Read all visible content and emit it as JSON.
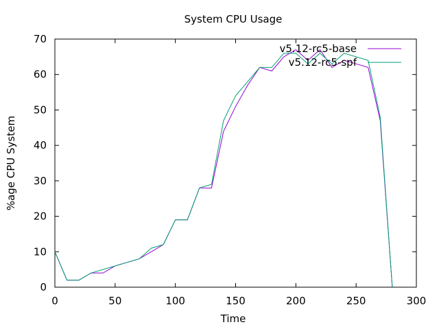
{
  "chart_data": {
    "type": "line",
    "title": "System CPU Usage",
    "xlabel": "Time",
    "ylabel": "%age CPU System",
    "xlim": [
      0,
      300
    ],
    "ylim": [
      0,
      70
    ],
    "xticks": [
      0,
      50,
      100,
      150,
      200,
      250,
      300
    ],
    "yticks": [
      0,
      10,
      20,
      30,
      40,
      50,
      60,
      70
    ],
    "grid": false,
    "legend_position": "top-right",
    "series": [
      {
        "name": "v5.12-rc5-base",
        "color": "#9400d3",
        "points": [
          [
            0,
            10
          ],
          [
            10,
            2
          ],
          [
            20,
            2
          ],
          [
            30,
            4
          ],
          [
            40,
            4
          ],
          [
            50,
            6
          ],
          [
            60,
            7
          ],
          [
            70,
            8
          ],
          [
            80,
            10
          ],
          [
            90,
            12
          ],
          [
            100,
            19
          ],
          [
            110,
            19
          ],
          [
            120,
            28
          ],
          [
            130,
            28
          ],
          [
            140,
            44
          ],
          [
            150,
            51
          ],
          [
            160,
            57
          ],
          [
            170,
            62
          ],
          [
            180,
            61
          ],
          [
            190,
            65
          ],
          [
            200,
            67
          ],
          [
            210,
            64
          ],
          [
            220,
            67
          ],
          [
            230,
            62
          ],
          [
            240,
            64
          ],
          [
            250,
            63
          ],
          [
            260,
            62
          ],
          [
            270,
            47
          ],
          [
            280,
            0
          ]
        ]
      },
      {
        "name": "v5.12-rc5-spf",
        "color": "#009e73",
        "points": [
          [
            0,
            10
          ],
          [
            10,
            2
          ],
          [
            20,
            2
          ],
          [
            30,
            4
          ],
          [
            40,
            5
          ],
          [
            50,
            6
          ],
          [
            60,
            7
          ],
          [
            70,
            8
          ],
          [
            80,
            11
          ],
          [
            90,
            12
          ],
          [
            100,
            19
          ],
          [
            110,
            19
          ],
          [
            120,
            28
          ],
          [
            130,
            29
          ],
          [
            140,
            47
          ],
          [
            150,
            54
          ],
          [
            160,
            58
          ],
          [
            170,
            62
          ],
          [
            180,
            62
          ],
          [
            190,
            66
          ],
          [
            200,
            66
          ],
          [
            210,
            63
          ],
          [
            220,
            66
          ],
          [
            230,
            63
          ],
          [
            240,
            66
          ],
          [
            250,
            65
          ],
          [
            260,
            64
          ],
          [
            270,
            48
          ],
          [
            280,
            0
          ]
        ]
      }
    ]
  }
}
